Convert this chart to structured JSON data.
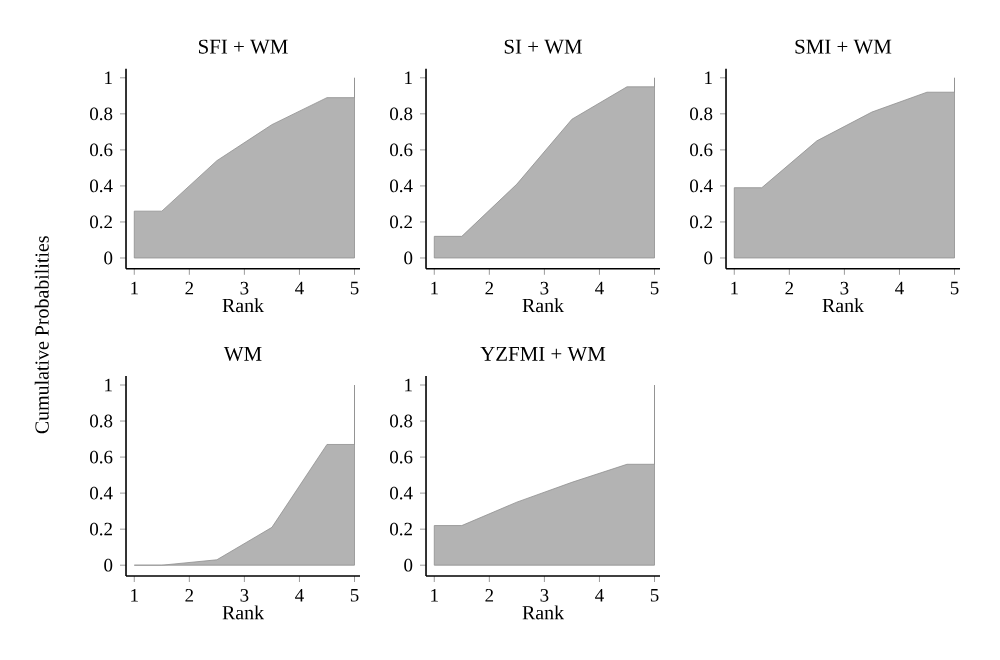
{
  "chart_data": [
    {
      "type": "area",
      "title": "SFI + WM",
      "xlabel": "Rank",
      "ylabel": "Cumulative Probabilities",
      "x": [
        1,
        1.5,
        2.5,
        3.5,
        4.5,
        5,
        5
      ],
      "series": [
        {
          "color": "#b3b3b3",
          "values": [
            0.26,
            0.26,
            0.54,
            0.74,
            0.89,
            0.89,
            1
          ]
        }
      ],
      "xlim": [
        0.85,
        5.1
      ],
      "ylim": [
        -0.06,
        1.05
      ],
      "xticks": [
        1,
        2,
        3,
        4,
        5
      ],
      "yticks": [
        0,
        0.2,
        0.4,
        0.6,
        0.8,
        1
      ]
    },
    {
      "type": "area",
      "title": "SI + WM",
      "xlabel": "Rank",
      "x": [
        1,
        1.5,
        2.5,
        3.5,
        4.5,
        5,
        5
      ],
      "series": [
        {
          "color": "#b3b3b3",
          "values": [
            0.12,
            0.12,
            0.41,
            0.77,
            0.95,
            0.95,
            1
          ]
        }
      ],
      "xlim": [
        0.85,
        5.1
      ],
      "ylim": [
        -0.06,
        1.05
      ],
      "xticks": [
        1,
        2,
        3,
        4,
        5
      ],
      "yticks": [
        0,
        0.2,
        0.4,
        0.6,
        0.8,
        1
      ]
    },
    {
      "type": "area",
      "title": "SMI + WM",
      "xlabel": "Rank",
      "x": [
        1,
        1.5,
        2.5,
        3.5,
        4.5,
        5,
        5
      ],
      "series": [
        {
          "color": "#b3b3b3",
          "values": [
            0.39,
            0.39,
            0.65,
            0.81,
            0.92,
            0.92,
            1
          ]
        }
      ],
      "xlim": [
        0.85,
        5.1
      ],
      "ylim": [
        -0.06,
        1.05
      ],
      "xticks": [
        1,
        2,
        3,
        4,
        5
      ],
      "yticks": [
        0,
        0.2,
        0.4,
        0.6,
        0.8,
        1
      ]
    },
    {
      "type": "area",
      "title": "WM",
      "xlabel": "Rank",
      "x": [
        1,
        1.5,
        2.5,
        3.5,
        4.5,
        5,
        5
      ],
      "series": [
        {
          "color": "#b3b3b3",
          "values": [
            0.0,
            0.0,
            0.03,
            0.21,
            0.67,
            0.67,
            1
          ]
        }
      ],
      "xlim": [
        0.85,
        5.1
      ],
      "ylim": [
        -0.06,
        1.05
      ],
      "xticks": [
        1,
        2,
        3,
        4,
        5
      ],
      "yticks": [
        0,
        0.2,
        0.4,
        0.6,
        0.8,
        1
      ]
    },
    {
      "type": "area",
      "title": "YZFMI + WM",
      "xlabel": "Rank",
      "x": [
        1,
        1.5,
        2.5,
        3.5,
        4.5,
        5,
        5
      ],
      "series": [
        {
          "color": "#b3b3b3",
          "values": [
            0.22,
            0.22,
            0.35,
            0.46,
            0.56,
            0.56,
            1
          ]
        }
      ],
      "xlim": [
        0.85,
        5.1
      ],
      "ylim": [
        -0.06,
        1.05
      ],
      "xticks": [
        1,
        2,
        3,
        4,
        5
      ],
      "yticks": [
        0,
        0.2,
        0.4,
        0.6,
        0.8,
        1
      ]
    }
  ]
}
